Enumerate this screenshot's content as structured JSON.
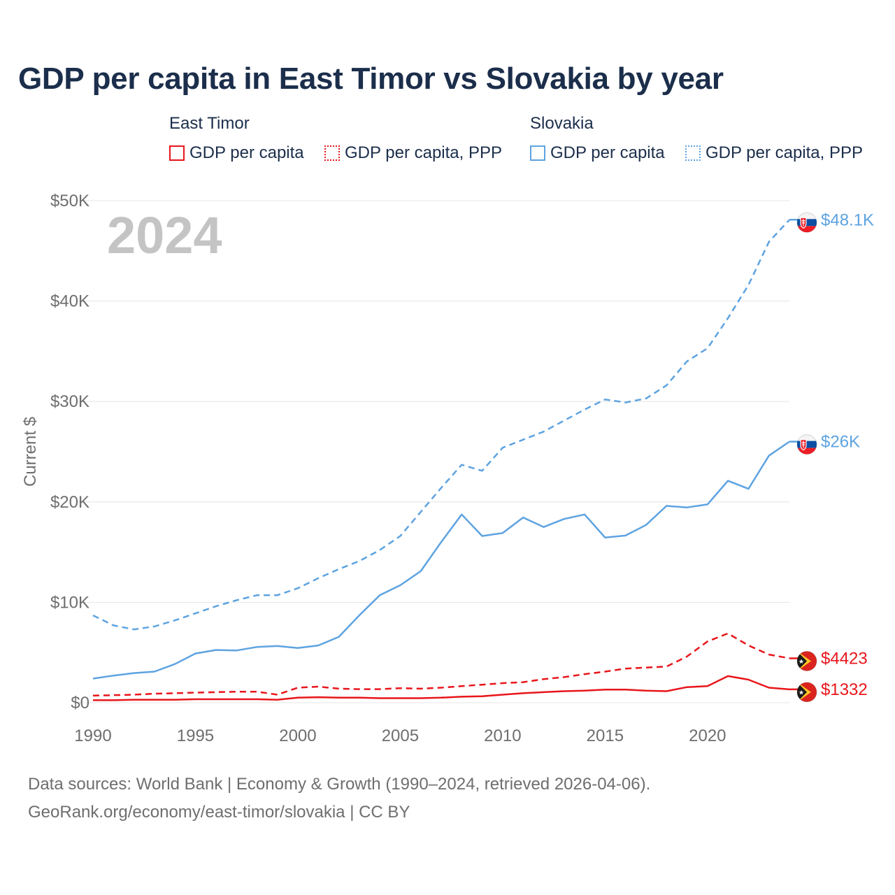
{
  "title": "GDP per capita in East Timor vs Slovakia by year",
  "legend": {
    "groups": [
      {
        "name": "East Timor",
        "items": [
          {
            "label": "GDP per capita",
            "style": "solid"
          },
          {
            "label": "GDP per capita, PPP",
            "style": "dotted"
          }
        ]
      },
      {
        "name": "Slovakia",
        "items": [
          {
            "label": "GDP per capita",
            "style": "solid"
          },
          {
            "label": "GDP per capita, PPP",
            "style": "dotted"
          }
        ]
      }
    ]
  },
  "colors": {
    "east_timor": "#e8161b",
    "slovakia": "#5ea3e0",
    "grid": "#e5e5e5",
    "axis_text": "#6e6e6e",
    "year_watermark": "#c4c4c4"
  },
  "chart_data": {
    "type": "line",
    "ylabel": "Current $",
    "xlim": [
      1990,
      2024
    ],
    "ylim": [
      0,
      50000
    ],
    "x_ticks": [
      1990,
      1995,
      2000,
      2005,
      2010,
      2015,
      2020
    ],
    "x_tick_labels": [
      "1990",
      "1995",
      "2000",
      "2005",
      "2010",
      "2015",
      "2020"
    ],
    "y_ticks": [
      0,
      10000,
      20000,
      30000,
      40000,
      50000
    ],
    "y_tick_labels": [
      "$0",
      "$10K",
      "$20K",
      "$30K",
      "$40K",
      "$50K"
    ],
    "year_label": "2024",
    "x": [
      1990,
      1991,
      1992,
      1993,
      1994,
      1995,
      1996,
      1997,
      1998,
      1999,
      2000,
      2001,
      2002,
      2003,
      2004,
      2005,
      2006,
      2007,
      2008,
      2009,
      2010,
      2011,
      2012,
      2013,
      2014,
      2015,
      2016,
      2017,
      2018,
      2019,
      2020,
      2021,
      2022,
      2023,
      2024
    ],
    "series": [
      {
        "name": "Slovakia GDP per capita, PPP",
        "country": "Slovakia",
        "flag": "slovakia",
        "style": "dashed",
        "end_label": "$48.1K",
        "values": [
          8700,
          7700,
          7300,
          7600,
          8200,
          8900,
          9600,
          10200,
          10700,
          10700,
          11400,
          12400,
          13300,
          14100,
          15200,
          16600,
          19000,
          21400,
          23700,
          23100,
          25400,
          26200,
          27000,
          28100,
          29200,
          30200,
          29900,
          30300,
          31600,
          34000,
          35300,
          38300,
          41600,
          45900,
          48100
        ]
      },
      {
        "name": "Slovakia GDP per capita",
        "country": "Slovakia",
        "flag": "slovakia",
        "style": "solid",
        "end_label": "$26K",
        "values": [
          2400,
          2700,
          2950,
          3100,
          3850,
          4900,
          5250,
          5200,
          5550,
          5650,
          5450,
          5700,
          6550,
          8700,
          10700,
          11700,
          13100,
          16000,
          18750,
          16600,
          16900,
          18450,
          17500,
          18300,
          18750,
          16450,
          16650,
          17700,
          19600,
          19450,
          19750,
          22100,
          21300,
          24600,
          26000
        ]
      },
      {
        "name": "East Timor GDP per capita, PPP",
        "country": "East Timor",
        "flag": "east_timor",
        "style": "dashed",
        "end_label": "$4423",
        "values": [
          700,
          750,
          800,
          900,
          950,
          1000,
          1050,
          1100,
          1100,
          800,
          1500,
          1600,
          1400,
          1350,
          1350,
          1450,
          1400,
          1500,
          1650,
          1800,
          1950,
          2050,
          2350,
          2550,
          2850,
          3100,
          3400,
          3500,
          3600,
          4600,
          6100,
          6900,
          5700,
          4800,
          4423
        ]
      },
      {
        "name": "East Timor GDP per capita",
        "country": "East Timor",
        "flag": "east_timor",
        "style": "solid",
        "end_label": "$1332",
        "values": [
          250,
          250,
          300,
          300,
          300,
          350,
          350,
          350,
          350,
          300,
          500,
          550,
          500,
          500,
          450,
          450,
          450,
          500,
          600,
          650,
          800,
          950,
          1050,
          1150,
          1200,
          1300,
          1300,
          1200,
          1150,
          1550,
          1650,
          2650,
          2300,
          1500,
          1332
        ]
      }
    ]
  },
  "footer": {
    "line1": "Data sources: World Bank | Economy & Growth (1990–2024, retrieved 2026-04-06).",
    "line2": "GeoRank.org/economy/east-timor/slovakia | CC BY"
  }
}
